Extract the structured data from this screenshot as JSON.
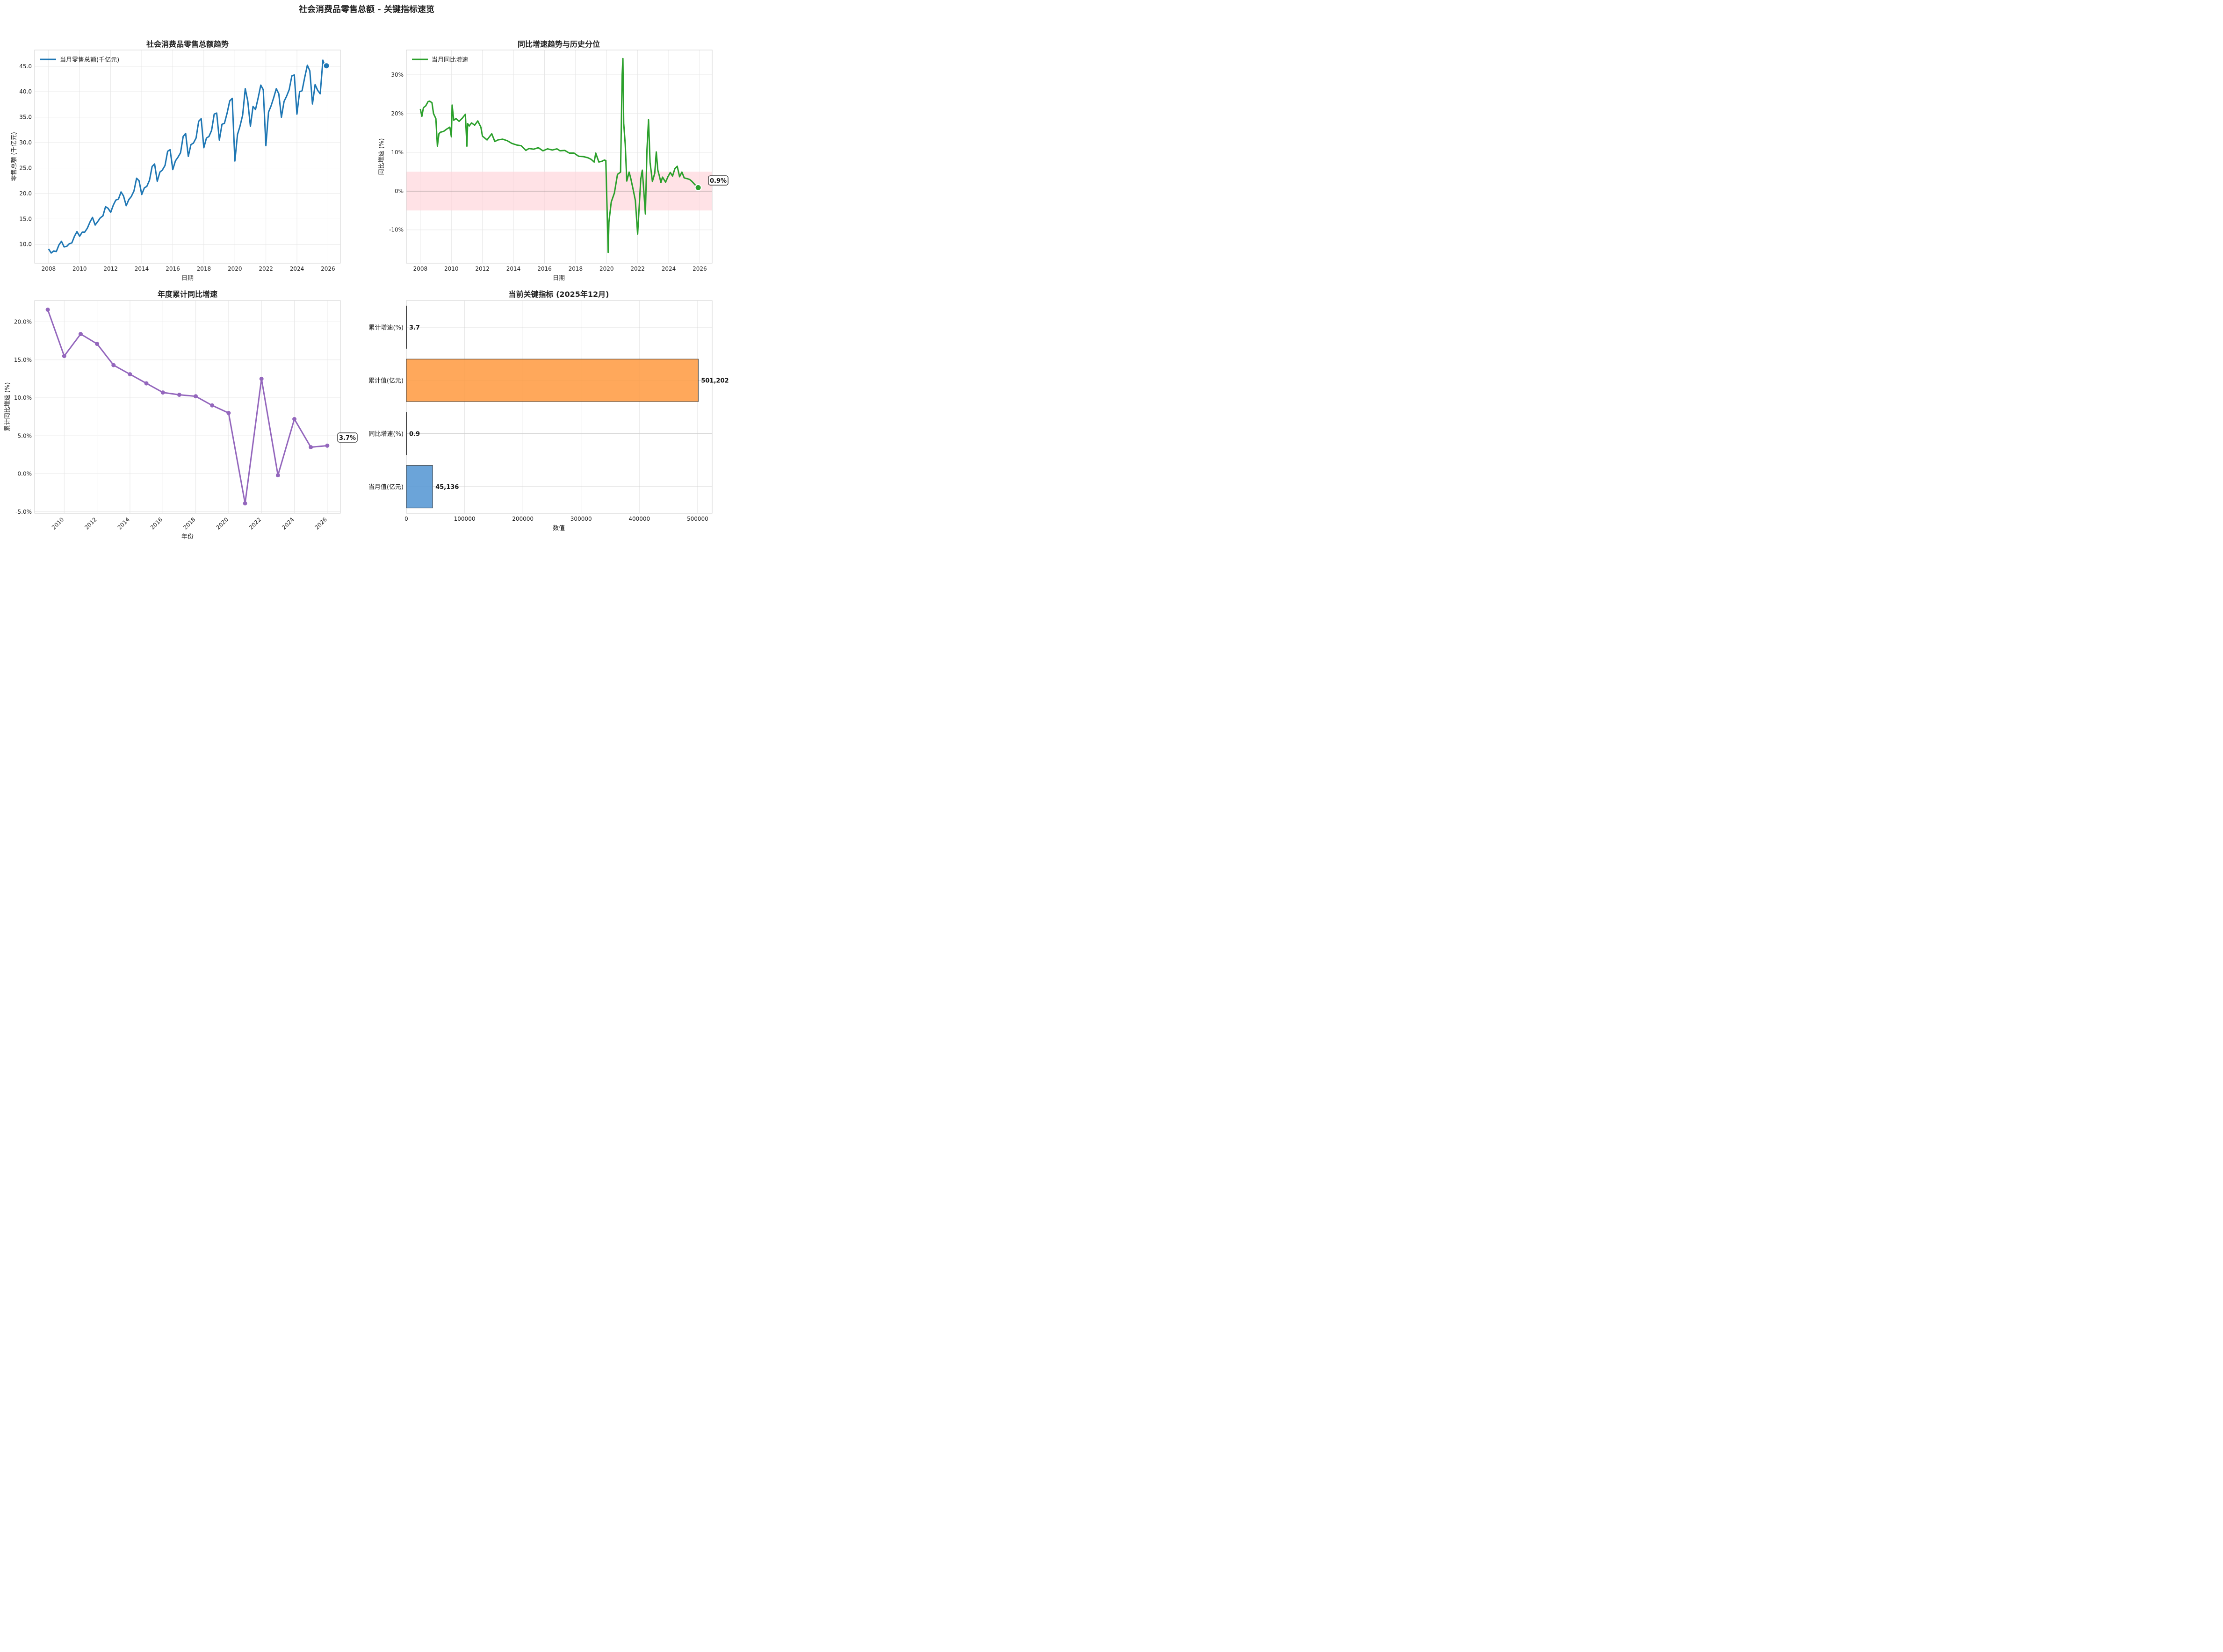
{
  "figure": {
    "title": "社会消费品零售总额 - 关键指标速览"
  },
  "colors": {
    "retail": "#1f77b4",
    "yoy": "#2ca02c",
    "cum": "#9467bd",
    "bar_month": "#5b9bd5",
    "bar_cum": "#ff9f4a",
    "band": "#ffd6db"
  },
  "chart_data": [
    {
      "type": "line",
      "title": "社会消费品零售总额趋势",
      "xlabel": "日期",
      "ylabel": "零售总额 (千亿元)",
      "xlim": [
        2007.1,
        2026.8
      ],
      "ylim": [
        6.3,
        48.2
      ],
      "xticks": [
        "2008",
        "2010",
        "2012",
        "2014",
        "2016",
        "2018",
        "2020",
        "2022",
        "2024",
        "2026"
      ],
      "yticks": [
        "10.0",
        "15.0",
        "20.0",
        "25.0",
        "30.0",
        "35.0",
        "40.0",
        "45.0"
      ],
      "legend": "top-left",
      "grid": true,
      "last_point": {
        "x": 2025.9,
        "y": 45.1
      },
      "series": [
        {
          "name": "当月零售总额(千亿元)",
          "color": "#1f77b4",
          "x": [
            2008.0,
            2008.17,
            2008.33,
            2008.5,
            2008.67,
            2008.83,
            2009.0,
            2009.17,
            2009.33,
            2009.5,
            2009.67,
            2009.83,
            2010.0,
            2010.17,
            2010.33,
            2010.5,
            2010.67,
            2010.83,
            2011.0,
            2011.17,
            2011.33,
            2011.5,
            2011.67,
            2011.83,
            2012.0,
            2012.17,
            2012.33,
            2012.5,
            2012.67,
            2012.83,
            2013.0,
            2013.17,
            2013.33,
            2013.5,
            2013.67,
            2013.83,
            2014.0,
            2014.17,
            2014.33,
            2014.5,
            2014.67,
            2014.83,
            2015.0,
            2015.17,
            2015.33,
            2015.5,
            2015.67,
            2015.83,
            2016.0,
            2016.17,
            2016.33,
            2016.5,
            2016.67,
            2016.83,
            2017.0,
            2017.17,
            2017.33,
            2017.5,
            2017.67,
            2017.83,
            2018.0,
            2018.17,
            2018.33,
            2018.5,
            2018.67,
            2018.83,
            2019.0,
            2019.17,
            2019.33,
            2019.5,
            2019.67,
            2019.83,
            2020.0,
            2020.17,
            2020.33,
            2020.5,
            2020.67,
            2020.83,
            2021.0,
            2021.17,
            2021.33,
            2021.5,
            2021.67,
            2021.83,
            2022.0,
            2022.17,
            2022.33,
            2022.5,
            2022.67,
            2022.83,
            2023.0,
            2023.17,
            2023.33,
            2023.5,
            2023.67,
            2023.83,
            2024.0,
            2024.17,
            2024.33,
            2024.5,
            2024.67,
            2024.83,
            2025.0,
            2025.17,
            2025.33,
            2025.5,
            2025.67,
            2025.83,
            2025.9
          ],
          "y": [
            9.1,
            8.3,
            8.7,
            8.6,
            9.9,
            10.6,
            9.5,
            9.6,
            10.1,
            10.3,
            11.6,
            12.5,
            11.6,
            12.4,
            12.4,
            13.2,
            14.4,
            15.3,
            13.8,
            14.5,
            15.2,
            15.6,
            17.4,
            17.1,
            16.3,
            17.7,
            18.7,
            18.9,
            20.3,
            19.5,
            17.6,
            18.8,
            19.4,
            20.5,
            23.0,
            22.5,
            19.8,
            21.1,
            21.4,
            22.6,
            25.3,
            25.8,
            22.4,
            24.2,
            24.6,
            25.5,
            28.3,
            28.6,
            24.7,
            26.4,
            27.1,
            28.0,
            31.2,
            31.8,
            27.3,
            29.6,
            29.9,
            30.9,
            34.2,
            34.7,
            29.0,
            30.9,
            31.2,
            32.4,
            35.6,
            35.8,
            30.5,
            33.6,
            33.8,
            35.8,
            38.2,
            38.7,
            26.4,
            31.6,
            33.2,
            35.4,
            40.6,
            38.2,
            33.2,
            37.1,
            36.5,
            38.8,
            41.3,
            40.4,
            29.4,
            36.0,
            37.2,
            38.8,
            40.6,
            39.6,
            35.0,
            38.1,
            39.1,
            40.4,
            43.1,
            43.3,
            35.6,
            40.0,
            40.2,
            42.8,
            45.2,
            44.1,
            37.6,
            41.4,
            40.3,
            39.6,
            46.2,
            44.8,
            45.1
          ]
        }
      ]
    },
    {
      "type": "line",
      "title": "同比增速趋势与历史分位",
      "xlabel": "日期",
      "ylabel": "同比增速 (%)",
      "xlim": [
        2007.1,
        2026.8
      ],
      "ylim": [
        -18.6,
        36.4
      ],
      "xticks": [
        "2008",
        "2010",
        "2012",
        "2014",
        "2016",
        "2018",
        "2020",
        "2022",
        "2024",
        "2026"
      ],
      "yticks": [
        "-10%",
        "0%",
        "10%",
        "20%",
        "30%"
      ],
      "band": [
        -5,
        5
      ],
      "zero_line": 0,
      "legend": "top-left",
      "grid": true,
      "annotation": "0.9%",
      "last_point": {
        "x": 2025.9,
        "y": 0.9
      },
      "series": [
        {
          "name": "当月同比增速",
          "color": "#2ca02c",
          "x": [
            2008.0,
            2008.1,
            2008.2,
            2008.35,
            2008.5,
            2008.6,
            2008.75,
            2008.85,
            2009.0,
            2009.1,
            2009.2,
            2009.3,
            2009.5,
            2009.7,
            2009.9,
            2010.0,
            2010.05,
            2010.15,
            2010.3,
            2010.5,
            2010.7,
            2010.9,
            2011.0,
            2011.05,
            2011.15,
            2011.3,
            2011.5,
            2011.7,
            2011.9,
            2012.0,
            2012.3,
            2012.6,
            2012.8,
            2013.0,
            2013.3,
            2013.6,
            2013.9,
            2014.2,
            2014.5,
            2014.8,
            2015.0,
            2015.3,
            2015.6,
            2015.9,
            2016.2,
            2016.5,
            2016.8,
            2017.0,
            2017.3,
            2017.6,
            2017.9,
            2018.2,
            2018.5,
            2018.8,
            2019.0,
            2019.2,
            2019.3,
            2019.5,
            2019.7,
            2019.85,
            2019.95,
            2020.1,
            2020.15,
            2020.3,
            2020.5,
            2020.7,
            2020.9,
            2021.0,
            2021.05,
            2021.1,
            2021.2,
            2021.3,
            2021.45,
            2021.55,
            2021.7,
            2021.85,
            2022.0,
            2022.2,
            2022.3,
            2022.4,
            2022.5,
            2022.6,
            2022.7,
            2022.8,
            2022.95,
            2023.1,
            2023.2,
            2023.3,
            2023.4,
            2023.5,
            2023.6,
            2023.8,
            2023.95,
            2024.1,
            2024.25,
            2024.4,
            2024.55,
            2024.7,
            2024.85,
            2025.0,
            2025.2,
            2025.35,
            2025.5,
            2025.7,
            2025.9
          ],
          "y": [
            21.2,
            19.3,
            21.5,
            22.0,
            23.1,
            23.2,
            22.8,
            20.0,
            18.7,
            11.6,
            14.8,
            15.2,
            15.4,
            16.0,
            16.5,
            14.0,
            22.2,
            18.3,
            18.7,
            18.0,
            18.8,
            19.8,
            11.6,
            17.4,
            16.8,
            17.6,
            17.0,
            18.1,
            16.5,
            14.2,
            13.2,
            14.8,
            12.8,
            13.2,
            13.4,
            13.0,
            12.3,
            11.9,
            11.7,
            10.5,
            11.0,
            10.8,
            11.2,
            10.4,
            10.9,
            10.6,
            10.9,
            10.4,
            10.5,
            9.8,
            9.8,
            9.0,
            8.9,
            8.6,
            8.2,
            7.5,
            9.8,
            7.5,
            7.7,
            8.0,
            7.9,
            -15.8,
            -8.0,
            -2.8,
            -0.5,
            4.3,
            4.9,
            30.0,
            34.2,
            17.5,
            12.1,
            2.6,
            4.9,
            3.4,
            0.6,
            -2.4,
            -11.1,
            3.1,
            5.4,
            -0.2,
            -5.9,
            10.7,
            18.4,
            7.4,
            2.5,
            4.6,
            10.1,
            5.4,
            3.9,
            2.2,
            3.6,
            2.3,
            3.7,
            4.8,
            3.9,
            5.8,
            6.4,
            3.7,
            4.9,
            3.4,
            3.2,
            3.0,
            2.5,
            1.6,
            0.9
          ]
        }
      ]
    },
    {
      "type": "line",
      "title": "年度累计同比增速",
      "xlabel": "年份",
      "ylabel": "累计同比增速 (%)",
      "xlim": [
        2008.2,
        2026.8
      ],
      "ylim": [
        -5.2,
        22.8
      ],
      "xticks": [
        "2010",
        "2012",
        "2014",
        "2016",
        "2018",
        "2020",
        "2022",
        "2024",
        "2026"
      ],
      "yticks": [
        "-5.0%",
        "0.0%",
        "5.0%",
        "10.0%",
        "15.0%",
        "20.0%"
      ],
      "grid": true,
      "annotation": "3.7%",
      "series": [
        {
          "name": "年度累计同比增速",
          "color": "#9467bd",
          "marker": "o",
          "x": [
            2009,
            2010,
            2011,
            2012,
            2013,
            2014,
            2015,
            2016,
            2017,
            2018,
            2019,
            2020,
            2021,
            2022,
            2023,
            2024,
            2025,
            2026
          ],
          "y": [
            21.6,
            15.5,
            18.4,
            17.1,
            14.3,
            13.1,
            11.9,
            10.7,
            10.4,
            10.2,
            9.0,
            8.0,
            -3.9,
            12.5,
            -0.2,
            7.2,
            3.5,
            3.7
          ]
        }
      ]
    },
    {
      "type": "bar",
      "orientation": "horizontal",
      "title": "当前关键指标 (2025年12月)",
      "xlabel": "数值",
      "xlim": [
        0,
        525000
      ],
      "xticks": [
        "0",
        "100000",
        "200000",
        "300000",
        "400000",
        "500000"
      ],
      "grid": true,
      "categories": [
        "累计增速(%)",
        "累计值(亿元)",
        "同比增速(%)",
        "当月值(亿元)"
      ],
      "values": [
        3.7,
        501202,
        0.9,
        45136
      ],
      "value_labels": [
        "3.7",
        "501,202",
        "0.9",
        "45,136"
      ],
      "bar_colors": [
        "#2ca02c",
        "#ff9f4a",
        "#9467bd",
        "#5b9bd5"
      ]
    }
  ]
}
